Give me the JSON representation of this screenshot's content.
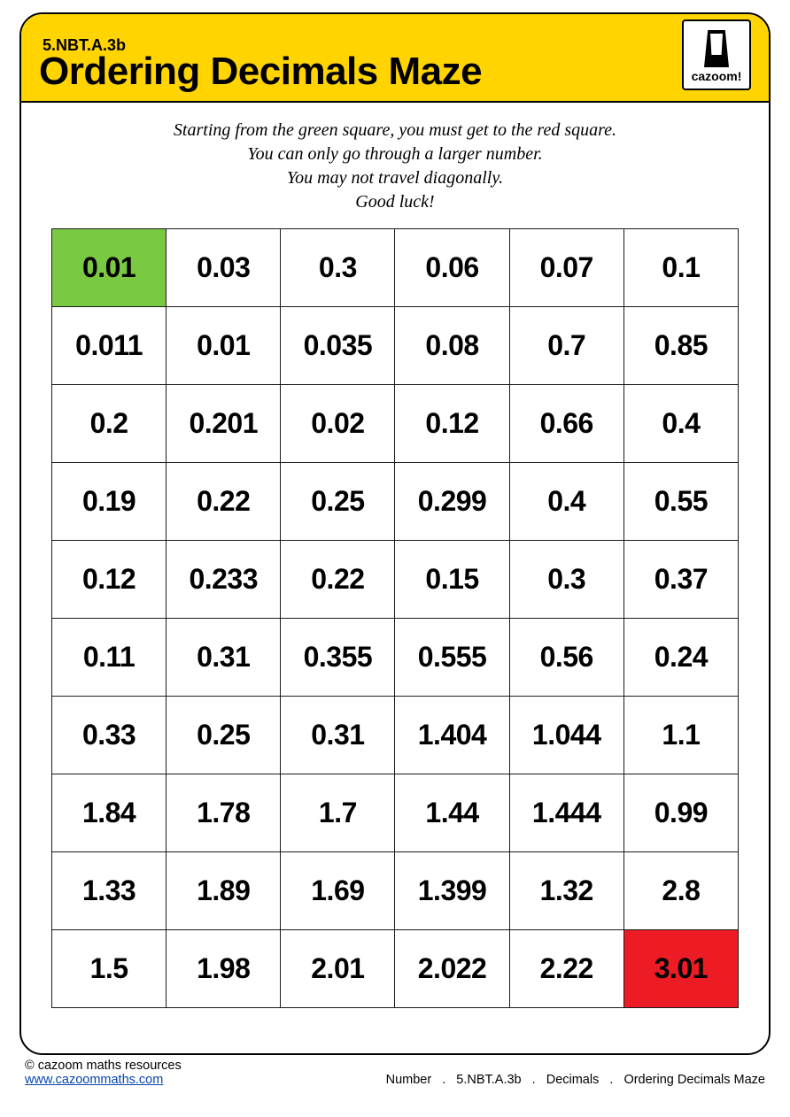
{
  "colors": {
    "header_bg": "#ffd400",
    "border": "#000000",
    "start_bg": "#7ac943",
    "end_bg": "#ed1c24",
    "link": "#0645ad",
    "cell_bg": "#ffffff",
    "text": "#000000"
  },
  "header": {
    "standard": "5.NBT.A.3b",
    "title": "Ordering Decimals Maze",
    "logo_text": "cazoom!"
  },
  "instructions": {
    "line1": "Starting from the green square, you must get to the red square.",
    "line2": "You can only go through a larger number.",
    "line3": "You may not travel diagonally.",
    "line4": "Good luck!"
  },
  "grid": {
    "type": "table",
    "columns": 6,
    "rows": 10,
    "cell_font_size": 32,
    "cell_font_weight": 900,
    "start_cell": [
      0,
      0
    ],
    "end_cell": [
      9,
      5
    ],
    "data": [
      [
        "0.01",
        "0.03",
        "0.3",
        "0.06",
        "0.07",
        "0.1"
      ],
      [
        "0.011",
        "0.01",
        "0.035",
        "0.08",
        "0.7",
        "0.85"
      ],
      [
        "0.2",
        "0.201",
        "0.02",
        "0.12",
        "0.66",
        "0.4"
      ],
      [
        "0.19",
        "0.22",
        "0.25",
        "0.299",
        "0.4",
        "0.55"
      ],
      [
        "0.12",
        "0.233",
        "0.22",
        "0.15",
        "0.3",
        "0.37"
      ],
      [
        "0.11",
        "0.31",
        "0.355",
        "0.555",
        "0.56",
        "0.24"
      ],
      [
        "0.33",
        "0.25",
        "0.31",
        "1.404",
        "1.044",
        "1.1"
      ],
      [
        "1.84",
        "1.78",
        "1.7",
        "1.44",
        "1.444",
        "0.99"
      ],
      [
        "1.33",
        "1.89",
        "1.69",
        "1.399",
        "1.32",
        "2.8"
      ],
      [
        "1.5",
        "1.98",
        "2.01",
        "2.022",
        "2.22",
        "3.01"
      ]
    ]
  },
  "footer": {
    "copyright": "© cazoom maths resources",
    "url_text": "www.cazoommaths.com",
    "crumb1": "Number",
    "crumb2": "5.NBT.A.3b",
    "crumb3": "Decimals",
    "crumb4": "Ordering Decimals Maze",
    "sep": "."
  }
}
